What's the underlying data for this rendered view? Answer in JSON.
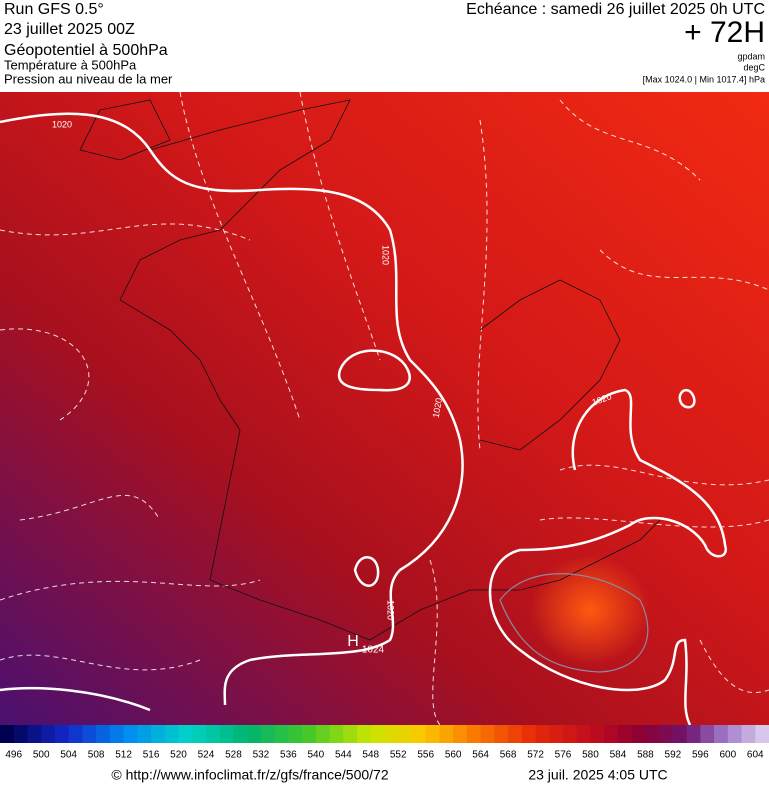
{
  "header": {
    "run": "Run GFS 0.5°",
    "date": "23 juillet 2025 00Z",
    "field1": "Géopotentiel à 500hPa",
    "field2": "Température à 500hPa",
    "field3": "Pression au niveau de la mer",
    "valid": "Echéance : samedi 26 juillet 2025 0h UTC",
    "lead": "+ 72H",
    "unit1": "gpdam",
    "unit2": "degC",
    "range": "[Max 1024.0 | Min 1017.4] hPa"
  },
  "map": {
    "isobar_labels": [
      "1020",
      "1020",
      "1020",
      "1020",
      "1020"
    ],
    "high": "H",
    "high_value": "1024"
  },
  "colorbar": {
    "labels": [
      496,
      500,
      504,
      508,
      512,
      516,
      520,
      524,
      528,
      532,
      536,
      540,
      544,
      548,
      552,
      556,
      560,
      564,
      568,
      572,
      576,
      580,
      584,
      588,
      592,
      596,
      600,
      604
    ]
  },
  "footer": {
    "source": "© http://www.infoclimat.fr/z/gfs/france/500/72",
    "timestamp": "23 juil. 2025  4:05 UTC"
  }
}
